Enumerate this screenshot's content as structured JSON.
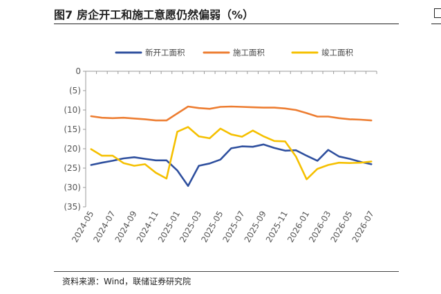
{
  "figure": {
    "number": "图7",
    "title": "房企开工和施工意愿仍然偏弱（%）",
    "source": "资料来源：Wind，联储证券研究院"
  },
  "chart_data": {
    "type": "line",
    "categories": [
      "2024-05",
      "2024-06",
      "2024-07",
      "2024-08",
      "2024-09",
      "2024-10",
      "2024-11",
      "2024-12",
      "2025-01",
      "2025-02",
      "2025-03",
      "2025-04",
      "2025-05",
      "2025-06",
      "2025-07",
      "2025-08",
      "2025-09",
      "2025-10",
      "2025-11",
      "2025-12",
      "2026-01",
      "2026-02",
      "2026-03",
      "2026-04",
      "2026-05",
      "2026-06",
      "2026-07"
    ],
    "x_tick_labels": [
      "2024-05",
      "2024-07",
      "2024-09",
      "2024-11",
      "2025-01",
      "2025-03",
      "2025-05",
      "2025-07",
      "2025-09",
      "2025-11",
      "2026-01",
      "2026-03",
      "2026-05",
      "2026-07"
    ],
    "y_ticks": [
      0,
      -5,
      -10,
      -15,
      -20,
      -25,
      -30,
      -35
    ],
    "y_tick_labels": [
      "0",
      "(5)",
      "(10)",
      "(15)",
      "(20)",
      "(25)",
      "(30)",
      "(35)"
    ],
    "ylim": [
      -35,
      0
    ],
    "legend_position": "top",
    "grid": false,
    "series": [
      {
        "name": "新开工面积",
        "color": "#2e4f9e",
        "values": [
          -24.2,
          -23.6,
          -23.1,
          -22.5,
          -22.2,
          -22.6,
          -23.0,
          -23.0,
          -25.6,
          -29.6,
          -24.4,
          -23.8,
          -22.8,
          -19.9,
          -19.4,
          -19.5,
          -18.9,
          -19.8,
          -20.5,
          -20.4,
          -21.8,
          -23.1,
          -20.3,
          -22.0,
          -22.6,
          -23.4,
          -24.0
        ]
      },
      {
        "name": "施工面积",
        "color": "#ed7d31",
        "values": [
          -11.6,
          -12.0,
          -12.1,
          -12.0,
          -12.2,
          -12.4,
          -12.7,
          -12.7,
          -10.9,
          -9.1,
          -9.5,
          -9.7,
          -9.2,
          -9.1,
          -9.2,
          -9.3,
          -9.4,
          -9.4,
          -9.6,
          -10.0,
          -10.8,
          -11.7,
          -11.7,
          -12.1,
          -12.4,
          -12.5,
          -12.7
        ]
      },
      {
        "name": "竣工面积",
        "color": "#f5c000",
        "values": [
          -20.1,
          -21.8,
          -21.8,
          -23.7,
          -24.4,
          -24.0,
          -26.2,
          -27.7,
          -15.6,
          -14.4,
          -16.8,
          -17.3,
          -14.8,
          -16.3,
          -16.9,
          -15.3,
          -16.8,
          -18.0,
          -18.1,
          -22.0,
          -27.9,
          -25.2,
          -24.2,
          -23.6,
          -23.7,
          -23.6,
          -23.3
        ]
      }
    ]
  }
}
